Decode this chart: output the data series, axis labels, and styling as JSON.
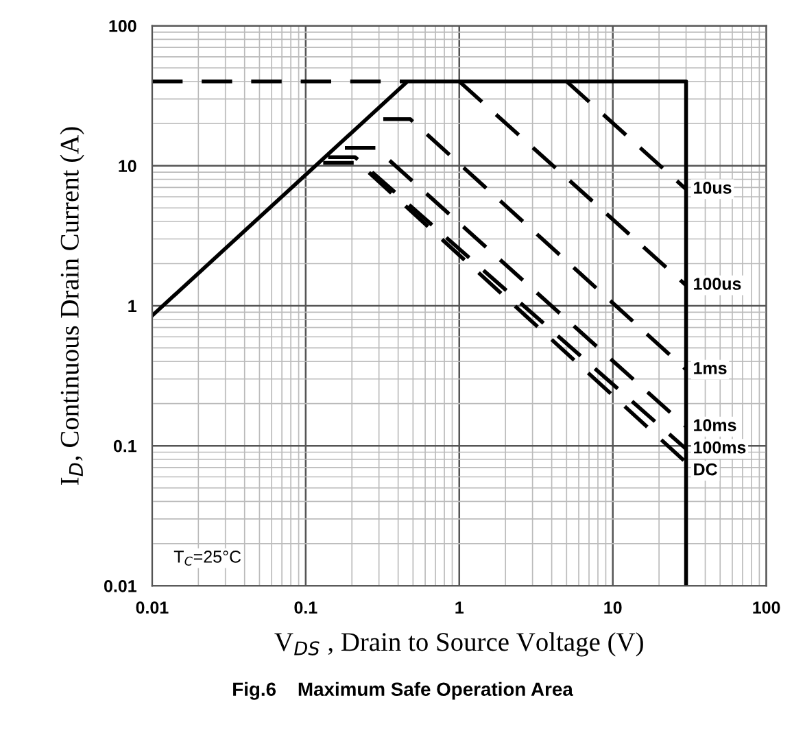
{
  "chart_data": {
    "type": "line",
    "title": "Fig.6    Maximum Safe Operation Area",
    "xlabel": "V$_{DS}$ , Drain to Source Voltage (V)",
    "ylabel": "I$_{D}$, Continuous Drain Current (A)",
    "log": "xy",
    "xlim": [
      0.01,
      100
    ],
    "ylim": [
      0.01,
      100
    ],
    "xticks": [
      0.01,
      0.1,
      1,
      10,
      100
    ],
    "yticks": [
      0.01,
      0.1,
      1,
      10,
      100
    ],
    "grid": true,
    "legend": false,
    "series": [
      {
        "color": "#000000",
        "line_style": "solid",
        "x": [
          0.01,
          0.46,
          30,
          30
        ],
        "values": [
          0.85,
          40,
          40,
          0.01
        ]
      },
      {
        "color": "#000000",
        "line_style": "dashed",
        "x": [
          0.01,
          0.46
        ],
        "values": [
          40,
          40
        ]
      },
      {
        "name": "10us",
        "color": "#000000",
        "line_style": "dashed",
        "x": [
          5,
          30
        ],
        "values": [
          40,
          6.8
        ]
      },
      {
        "name": "100us",
        "color": "#000000",
        "line_style": "dashed",
        "x": [
          1,
          30
        ],
        "values": [
          40,
          1.4
        ]
      },
      {
        "name": "1ms",
        "color": "#000000",
        "line_style": "dashed",
        "x": [
          0.32,
          0.48,
          30
        ],
        "values": [
          21.5,
          21.5,
          0.35
        ]
      },
      {
        "name": "10ms",
        "color": "#000000",
        "line_style": "dashed",
        "x": [
          0.18,
          0.285,
          30
        ],
        "values": [
          13.4,
          13.4,
          0.137
        ]
      },
      {
        "name": "100ms",
        "color": "#000000",
        "line_style": "dashed",
        "x": [
          0.14,
          0.21,
          30
        ],
        "values": [
          11.5,
          11.5,
          0.095
        ]
      },
      {
        "name": "DC",
        "color": "#000000",
        "line_style": "dashed",
        "x": [
          0.13,
          0.22,
          30
        ],
        "values": [
          10.5,
          10.5,
          0.076
        ]
      }
    ],
    "annotations": [
      "T$_{C}$=25°C"
    ]
  }
}
